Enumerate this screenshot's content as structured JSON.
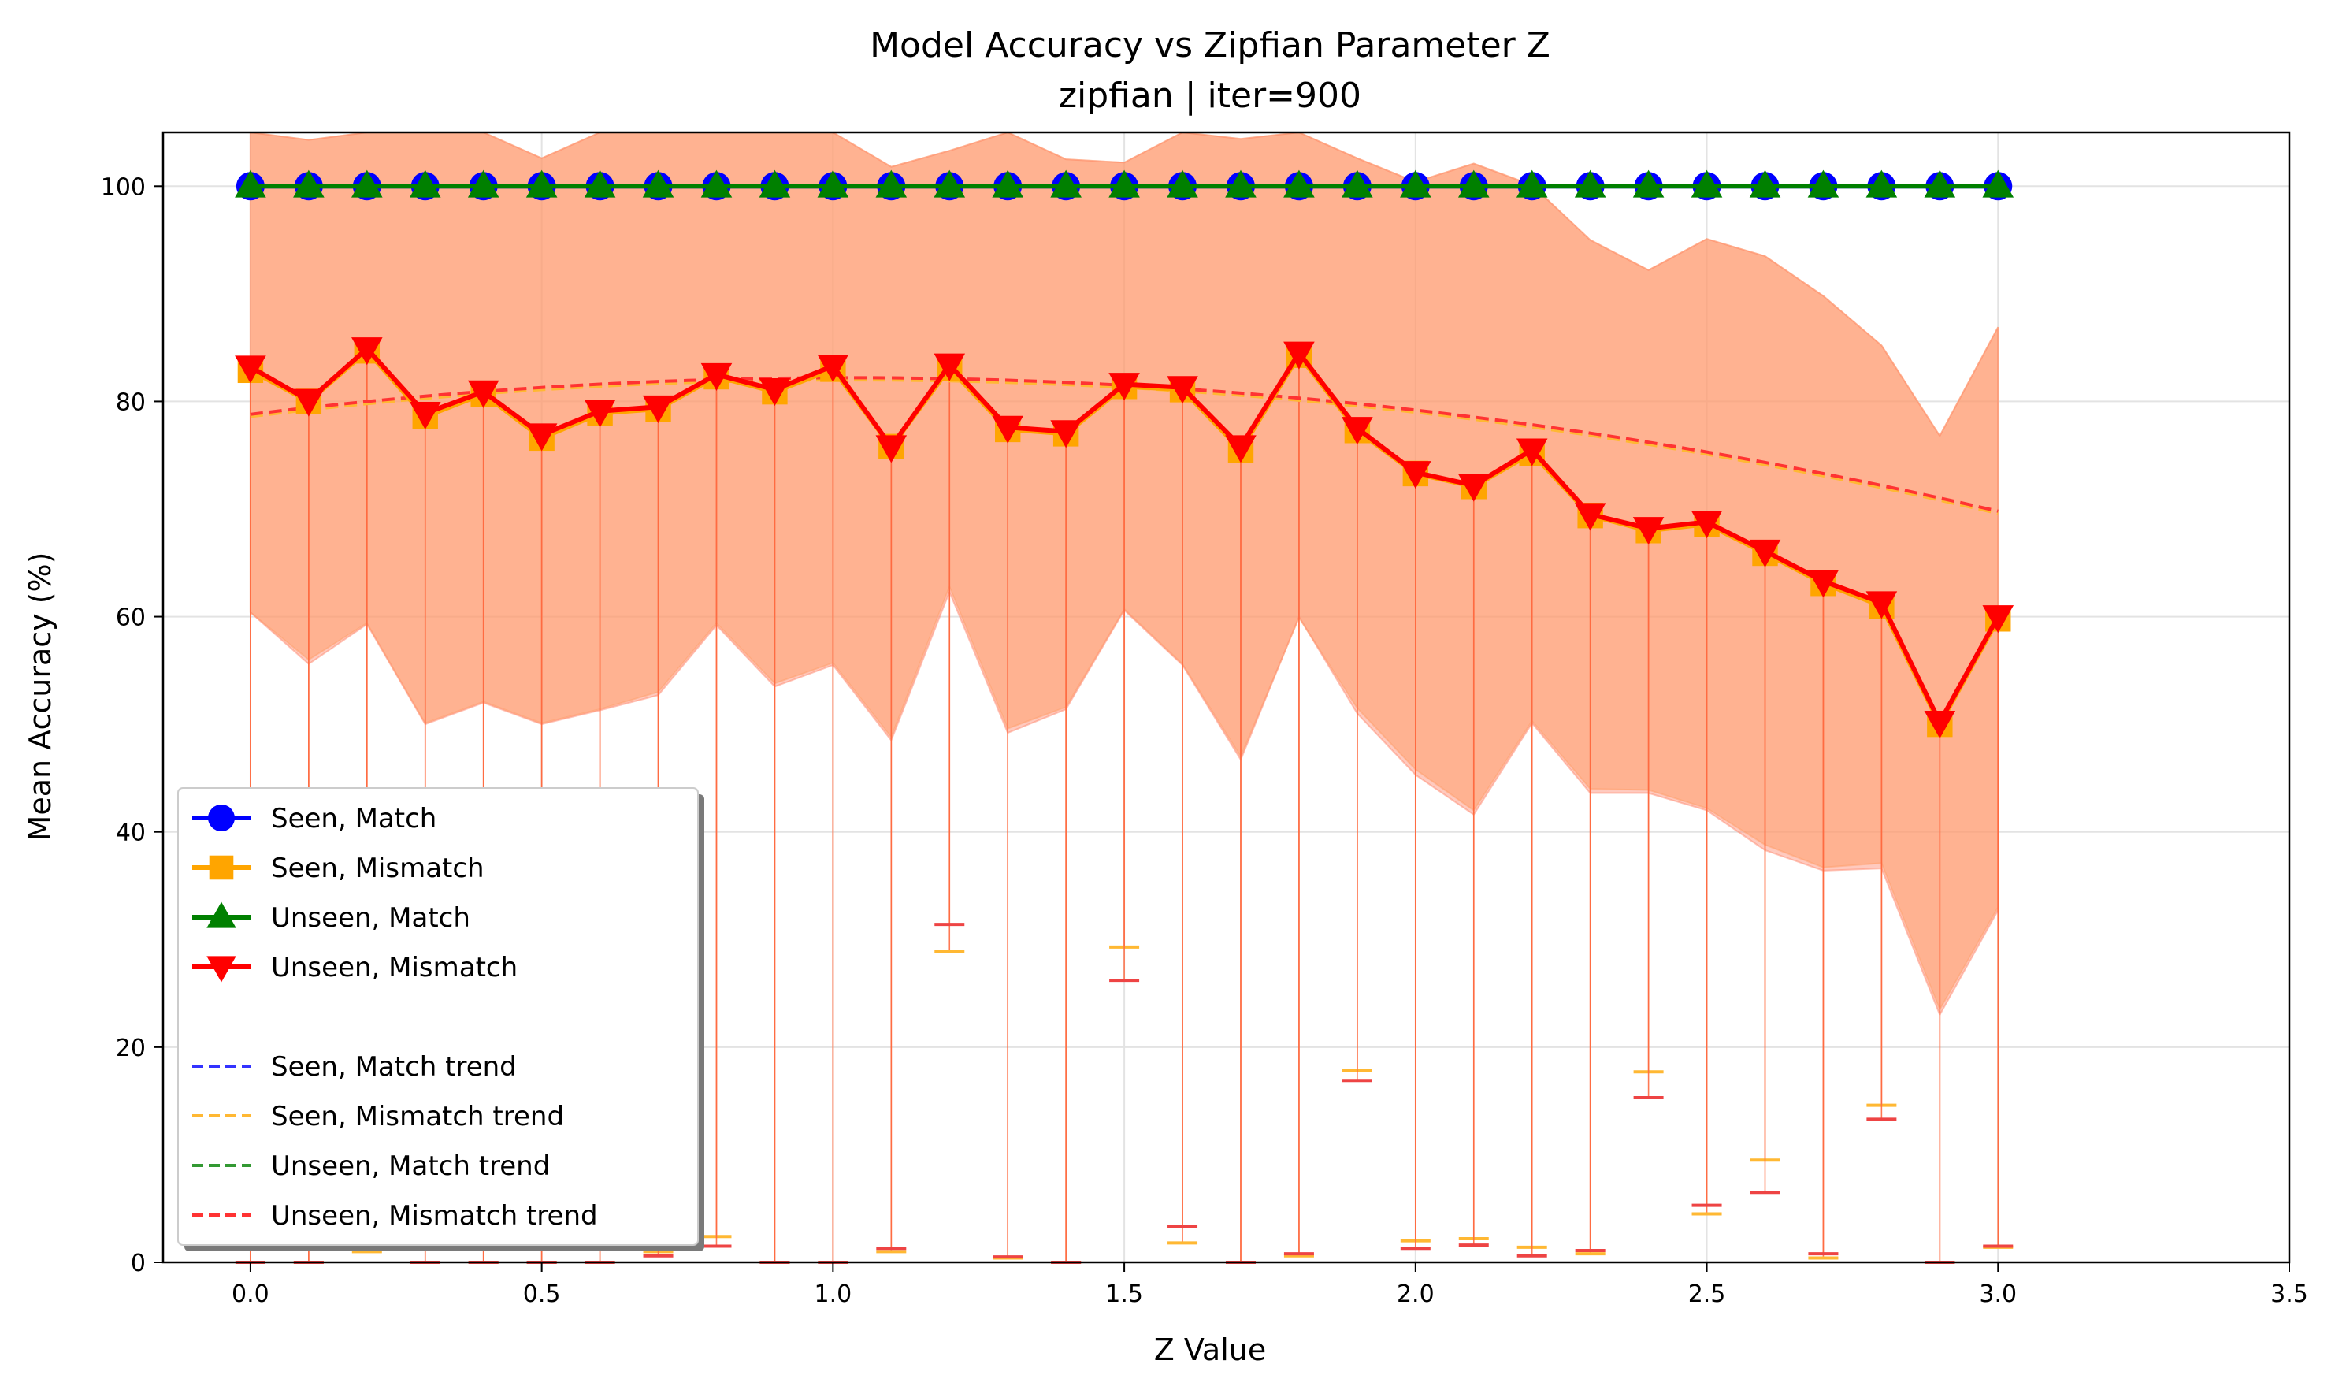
{
  "chart_data": {
    "type": "line",
    "title": "Model Accuracy vs Zipfian Parameter Z",
    "subtitle": "zipfian | iter=900",
    "xlabel": "Z Value",
    "ylabel": "Mean Accuracy (%)",
    "xlim": [
      -0.15,
      3.5
    ],
    "ylim": [
      0,
      105
    ],
    "xticks": [
      "0.0",
      "0.5",
      "1.0",
      "1.5",
      "2.0",
      "2.5",
      "3.0",
      "3.5"
    ],
    "yticks": [
      "0",
      "20",
      "40",
      "60",
      "80",
      "100"
    ],
    "grid": true,
    "legend_position": "center-left",
    "x": [
      0.0,
      0.1,
      0.2,
      0.3,
      0.4,
      0.5,
      0.6,
      0.7,
      0.8,
      0.9,
      1.0,
      1.1,
      1.2,
      1.3,
      1.4,
      1.5,
      1.6,
      1.7,
      1.8,
      1.9,
      2.0,
      2.1,
      2.2,
      2.3,
      2.4,
      2.5,
      2.6,
      2.7,
      2.8,
      2.9,
      3.0
    ],
    "series": [
      {
        "name": "Seen, Match",
        "color": "#0000ff",
        "marker": "circle",
        "values": [
          100,
          100,
          100,
          100,
          100,
          100,
          100,
          100,
          100,
          100,
          100,
          100,
          100,
          100,
          100,
          100,
          100,
          100,
          100,
          100,
          100,
          100,
          100,
          100,
          100,
          100,
          100,
          100,
          100,
          100,
          100
        ],
        "lower": [
          100,
          100,
          100,
          100,
          100,
          100,
          100,
          100,
          100,
          100,
          100,
          100,
          100,
          100,
          100,
          100,
          100,
          100,
          100,
          100,
          100,
          100,
          100,
          100,
          100,
          100,
          100,
          100,
          100,
          100,
          100
        ]
      },
      {
        "name": "Seen, Mismatch",
        "color": "#ffa500",
        "marker": "square",
        "values": [
          82.9,
          80.0,
          84.7,
          78.6,
          80.7,
          76.6,
          78.9,
          79.3,
          82.3,
          80.9,
          83.0,
          75.8,
          83.1,
          77.4,
          77.0,
          81.4,
          81.1,
          75.5,
          84.3,
          77.3,
          73.3,
          72.1,
          75.2,
          69.4,
          68.0,
          68.6,
          65.9,
          63.1,
          61.0,
          50.0,
          59.8
        ],
        "lower": [
          0,
          0,
          1.0,
          0,
          0,
          0,
          0,
          1.0,
          2.4,
          0,
          0,
          1.0,
          28.9,
          0.4,
          0,
          29.3,
          1.8,
          0,
          0.6,
          17.8,
          2.0,
          2.2,
          1.4,
          0.8,
          17.7,
          4.5,
          9.5,
          0.4,
          14.6,
          0,
          1.4
        ],
        "std_lower": [
          60.4,
          56.0,
          59.4,
          50.1,
          52.1,
          50.1,
          51.4,
          53.0,
          59.4,
          53.8,
          55.7,
          48.8,
          62.8,
          49.6,
          51.6,
          60.7,
          55.6,
          47.0,
          59.9,
          51.5,
          45.8,
          42.0,
          50.3,
          44.0,
          43.9,
          42.2,
          38.8,
          36.7,
          37.1,
          23.5,
          33.0
        ],
        "std_upper": [
          105,
          104.3,
          105,
          105,
          105,
          102.6,
          105,
          105,
          105,
          105,
          105,
          101.8,
          103.3,
          105,
          102.5,
          102.2,
          105,
          104.4,
          105,
          102.6,
          100.4,
          102.1,
          100.1,
          95.0,
          92.2,
          95.1,
          93.5,
          89.8,
          85.2,
          76.8,
          86.9
        ]
      },
      {
        "name": "Unseen, Match",
        "color": "#008000",
        "marker": "triangle-up",
        "values": [
          100,
          100,
          100,
          100,
          100,
          100,
          100,
          100,
          100,
          100,
          100,
          100,
          100,
          100,
          100,
          100,
          100,
          100,
          100,
          100,
          100,
          100,
          100,
          100,
          100,
          100,
          100,
          100,
          100,
          100,
          100
        ],
        "lower": [
          100,
          100,
          100,
          100,
          100,
          100,
          100,
          100,
          100,
          100,
          100,
          100,
          100,
          100,
          100,
          100,
          100,
          100,
          100,
          100,
          100,
          100,
          100,
          100,
          100,
          100,
          100,
          100,
          100,
          100,
          100
        ]
      },
      {
        "name": "Unseen, Mismatch",
        "color": "#ff0000",
        "marker": "triangle-down",
        "values": [
          83.2,
          80.1,
          84.9,
          78.9,
          80.9,
          76.9,
          79.1,
          79.5,
          82.5,
          81.1,
          83.3,
          75.8,
          83.4,
          77.6,
          77.2,
          81.6,
          81.3,
          75.8,
          84.5,
          77.5,
          73.4,
          72.2,
          75.5,
          69.5,
          68.2,
          68.8,
          66.1,
          63.3,
          61.3,
          50.2,
          60.0
        ],
        "lower": [
          0,
          0,
          1.2,
          0,
          0,
          0,
          0,
          0.6,
          1.5,
          0,
          0,
          1.3,
          31.4,
          0.5,
          0,
          26.2,
          3.3,
          0,
          0.8,
          16.9,
          1.3,
          1.6,
          0.6,
          1.1,
          15.3,
          5.3,
          6.5,
          0.8,
          13.3,
          0,
          1.5
        ],
        "std_lower": [
          60.4,
          55.6,
          59.3,
          50.0,
          52.0,
          50.0,
          51.3,
          52.7,
          59.2,
          53.5,
          55.5,
          48.5,
          62.3,
          49.2,
          51.4,
          60.6,
          55.5,
          46.7,
          60.0,
          51.0,
          45.3,
          41.6,
          50.1,
          43.6,
          43.6,
          42.0,
          38.3,
          36.4,
          36.6,
          23.0,
          32.7
        ],
        "std_upper": [
          105,
          104.3,
          105,
          105,
          105,
          102.6,
          105,
          105,
          105,
          105,
          105,
          101.8,
          103.3,
          105,
          102.5,
          102.2,
          105,
          104.4,
          105,
          102.6,
          100.4,
          102.1,
          100.1,
          95.0,
          92.2,
          95.1,
          93.5,
          89.8,
          85.2,
          76.8,
          86.9
        ]
      }
    ],
    "trends": [
      {
        "name": "Seen, Match trend",
        "color": "#3333ff",
        "coef": [
          0,
          0,
          100
        ]
      },
      {
        "name": "Seen, Mismatch trend",
        "color": "#ffb833",
        "coef": [
          -3.2,
          6.6,
          78.6
        ]
      },
      {
        "name": "Unseen, Match trend",
        "color": "#339933",
        "coef": [
          0,
          0,
          100
        ]
      },
      {
        "name": "Unseen, Mismatch trend",
        "color": "#ff3333",
        "coef": [
          -3.2,
          6.6,
          78.8
        ]
      }
    ]
  }
}
